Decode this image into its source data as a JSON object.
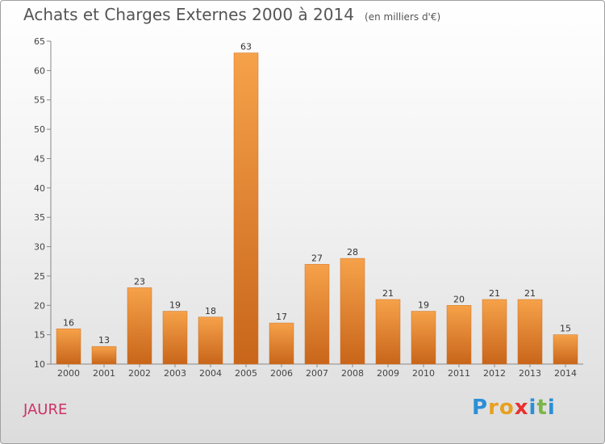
{
  "chart_data": {
    "type": "bar",
    "title": "Achats et Charges Externes 2000 à 2014",
    "subtitle": "(en milliers d'€)",
    "categories": [
      "2000",
      "2001",
      "2002",
      "2003",
      "2004",
      "2005",
      "2006",
      "2007",
      "2008",
      "2009",
      "2010",
      "2011",
      "2012",
      "2013",
      "2014"
    ],
    "values": [
      16,
      13,
      23,
      19,
      18,
      63,
      17,
      27,
      28,
      21,
      19,
      20,
      21,
      21,
      15
    ],
    "ylim": [
      10,
      65
    ],
    "yticks": [
      10,
      15,
      20,
      25,
      30,
      35,
      40,
      45,
      50,
      55,
      60,
      65
    ],
    "grid": false,
    "bar_color": "#f0902a"
  },
  "commune": "JAURE",
  "brand": {
    "letters": [
      "P",
      "r",
      "o",
      "x",
      "i",
      "t",
      "i"
    ],
    "colors": [
      "#2b8fd6",
      "#e8a020",
      "#e8a020",
      "#e83030",
      "#2b8fd6",
      "#7ab648",
      "#2b8fd6"
    ]
  }
}
